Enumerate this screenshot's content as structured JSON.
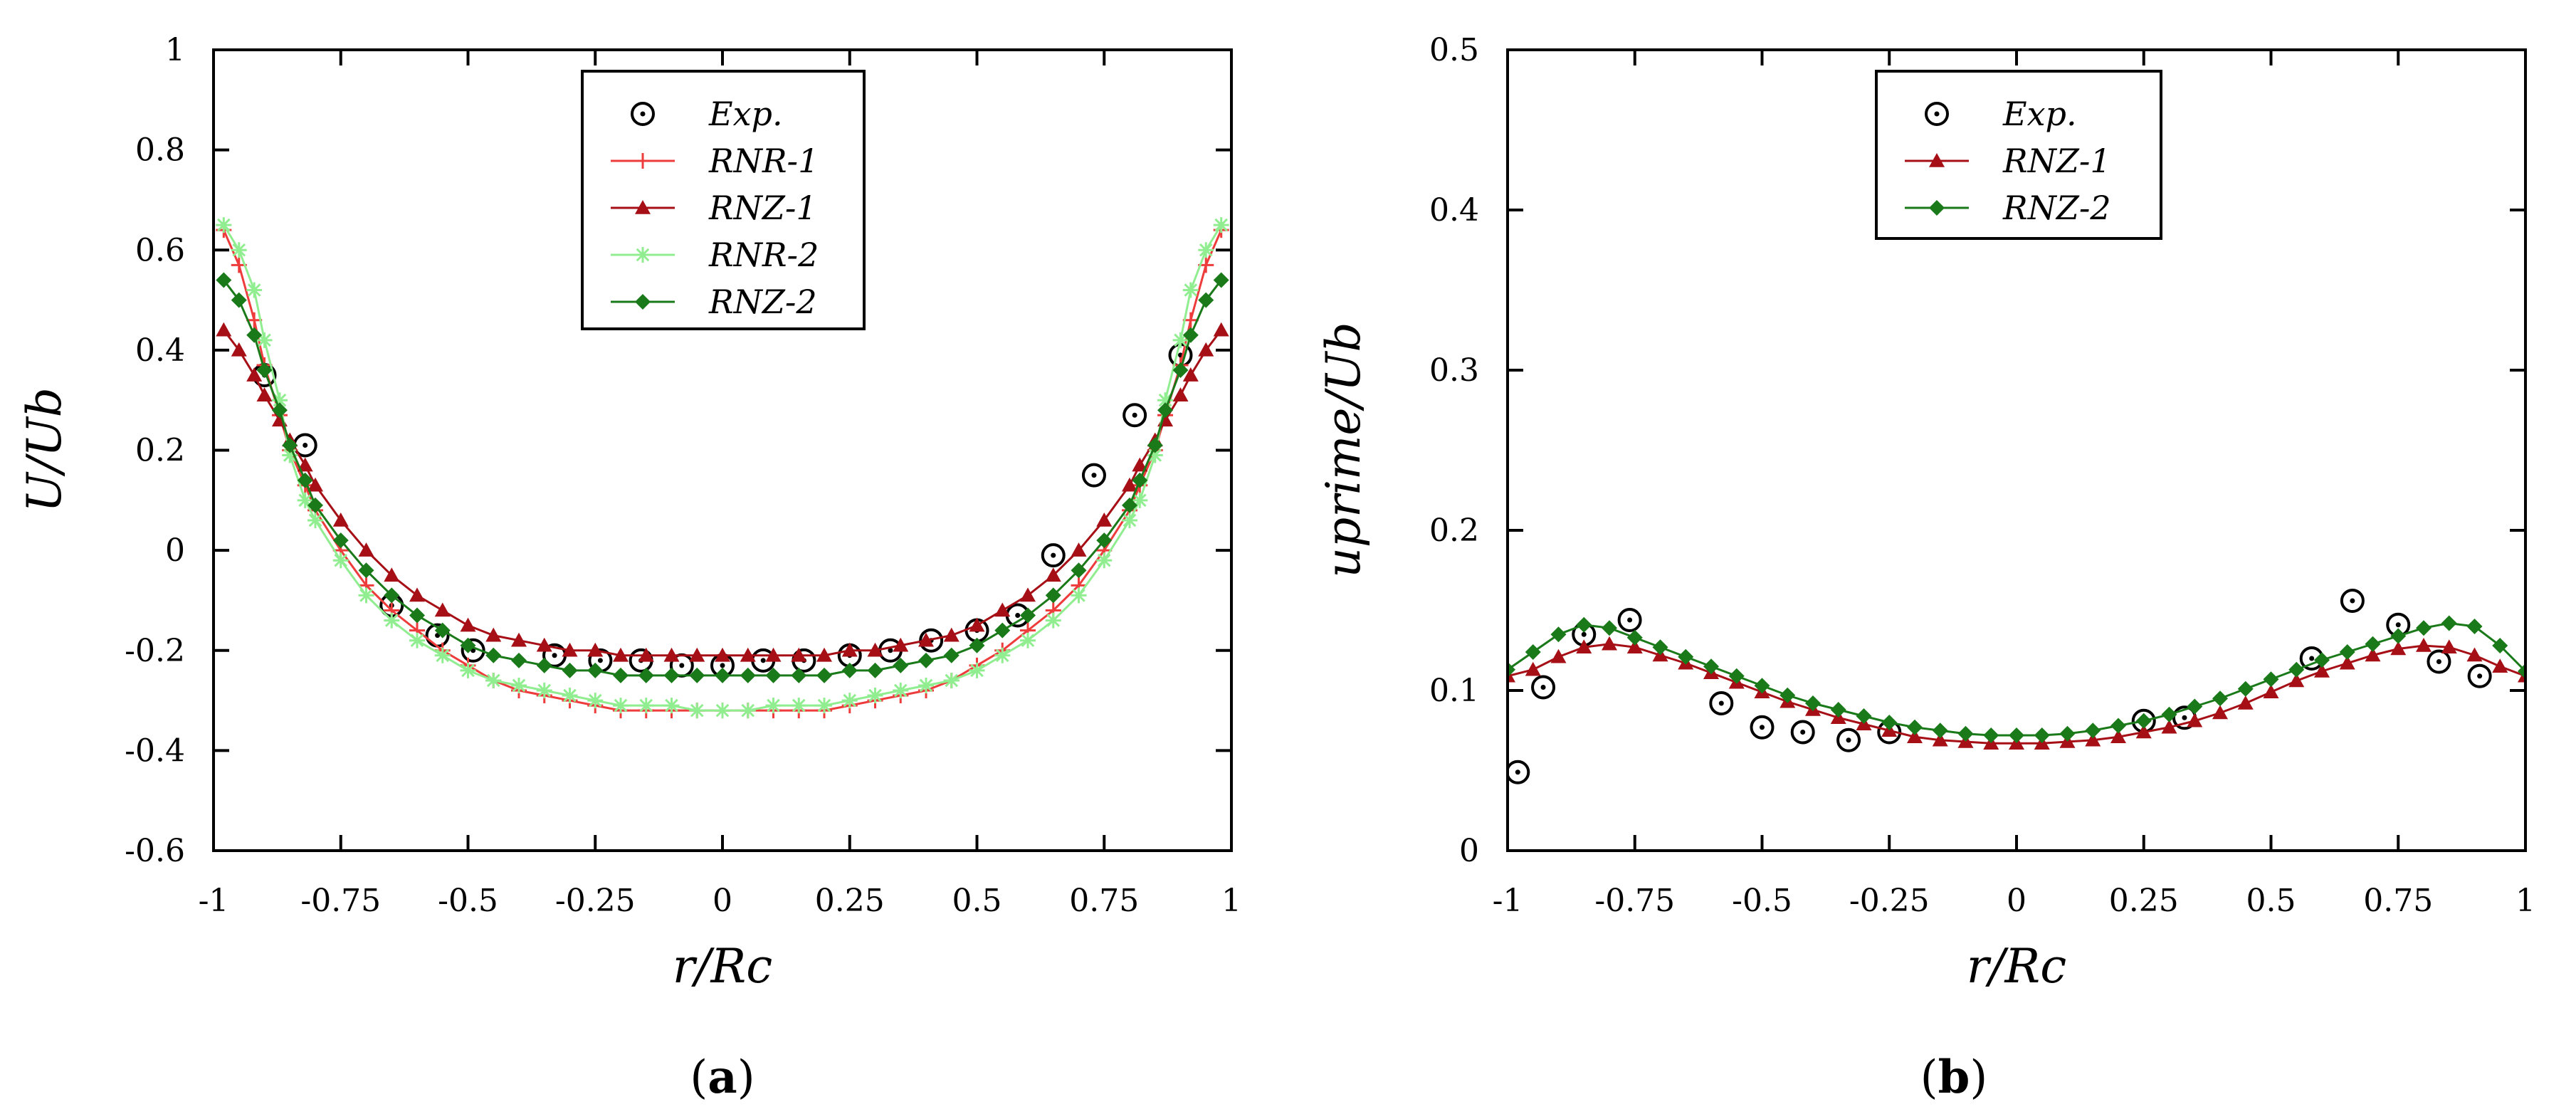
{
  "colors": {
    "exp": "#000000",
    "rnr1": "#ee3b3b",
    "rnz1": "#a50f15",
    "rnr2": "#90ee90",
    "rnz2": "#1a7a1a"
  },
  "chart_data": [
    {
      "type": "line",
      "panel_label": "a",
      "xlabel": "r/Rc",
      "ylabel": "U/Ub",
      "xlim": [
        -1,
        1
      ],
      "ylim": [
        -0.6,
        1
      ],
      "xticks": [
        "-1",
        "-0.75",
        "-0.5",
        "-0.25",
        "0",
        "0.25",
        "0.5",
        "0.75",
        "1"
      ],
      "yticks": [
        "1",
        "0.8",
        "0.6",
        "0.4",
        "0.2",
        "0",
        "-0.2",
        "-0.4",
        "-0.6"
      ],
      "legend": [
        "Exp.",
        "RNR-1",
        "RNZ-1",
        "RNR-2",
        "RNZ-2"
      ],
      "legend_position": "top-center",
      "series": [
        {
          "name": "Exp.",
          "marker": "circle-dot",
          "x": [
            -0.9,
            -0.82,
            -0.65,
            -0.56,
            -0.49,
            -0.33,
            -0.24,
            -0.16,
            -0.08,
            0.0,
            0.08,
            0.16,
            0.25,
            0.33,
            0.41,
            0.5,
            0.58,
            0.65,
            0.73,
            0.81,
            0.9
          ],
          "y": [
            0.35,
            0.21,
            -0.11,
            -0.17,
            -0.2,
            -0.21,
            -0.22,
            -0.22,
            -0.23,
            -0.23,
            -0.22,
            -0.22,
            -0.21,
            -0.2,
            -0.18,
            -0.16,
            -0.13,
            -0.01,
            0.15,
            0.27,
            0.39
          ]
        },
        {
          "name": "RNR-1",
          "marker": "plus",
          "x": [
            -0.98,
            -0.95,
            -0.92,
            -0.9,
            -0.87,
            -0.85,
            -0.82,
            -0.8,
            -0.75,
            -0.7,
            -0.65,
            -0.6,
            -0.55,
            -0.5,
            -0.45,
            -0.4,
            -0.35,
            -0.3,
            -0.25,
            -0.2,
            -0.15,
            -0.1,
            -0.05,
            0.0,
            0.05,
            0.1,
            0.15,
            0.2,
            0.25,
            0.3,
            0.35,
            0.4,
            0.45,
            0.5,
            0.55,
            0.6,
            0.65,
            0.7,
            0.75,
            0.8,
            0.82,
            0.85,
            0.87,
            0.9,
            0.92,
            0.95,
            0.98
          ],
          "y": [
            0.64,
            0.57,
            0.46,
            0.37,
            0.27,
            0.2,
            0.13,
            0.08,
            0.0,
            -0.07,
            -0.12,
            -0.16,
            -0.2,
            -0.23,
            -0.26,
            -0.28,
            -0.29,
            -0.3,
            -0.31,
            -0.32,
            -0.32,
            -0.32,
            -0.32,
            -0.32,
            -0.32,
            -0.32,
            -0.32,
            -0.32,
            -0.31,
            -0.3,
            -0.29,
            -0.28,
            -0.26,
            -0.23,
            -0.2,
            -0.16,
            -0.12,
            -0.07,
            0.0,
            0.08,
            0.13,
            0.2,
            0.27,
            0.37,
            0.46,
            0.57,
            0.64
          ]
        },
        {
          "name": "RNZ-1",
          "marker": "triangle",
          "x": [
            -0.98,
            -0.95,
            -0.92,
            -0.9,
            -0.87,
            -0.85,
            -0.82,
            -0.8,
            -0.75,
            -0.7,
            -0.65,
            -0.6,
            -0.55,
            -0.5,
            -0.45,
            -0.4,
            -0.35,
            -0.3,
            -0.25,
            -0.2,
            -0.15,
            -0.1,
            -0.05,
            0.0,
            0.05,
            0.1,
            0.15,
            0.2,
            0.25,
            0.3,
            0.35,
            0.4,
            0.45,
            0.5,
            0.55,
            0.6,
            0.65,
            0.7,
            0.75,
            0.8,
            0.82,
            0.85,
            0.87,
            0.9,
            0.92,
            0.95,
            0.98
          ],
          "y": [
            0.44,
            0.4,
            0.35,
            0.31,
            0.26,
            0.22,
            0.17,
            0.13,
            0.06,
            0.0,
            -0.05,
            -0.09,
            -0.12,
            -0.15,
            -0.17,
            -0.18,
            -0.19,
            -0.2,
            -0.2,
            -0.21,
            -0.21,
            -0.21,
            -0.21,
            -0.21,
            -0.21,
            -0.21,
            -0.21,
            -0.21,
            -0.2,
            -0.2,
            -0.19,
            -0.18,
            -0.17,
            -0.15,
            -0.12,
            -0.09,
            -0.05,
            0.0,
            0.06,
            0.13,
            0.17,
            0.22,
            0.26,
            0.31,
            0.35,
            0.4,
            0.44
          ]
        },
        {
          "name": "RNR-2",
          "marker": "asterisk",
          "x": [
            -0.98,
            -0.95,
            -0.92,
            -0.9,
            -0.87,
            -0.85,
            -0.82,
            -0.8,
            -0.75,
            -0.7,
            -0.65,
            -0.6,
            -0.55,
            -0.5,
            -0.45,
            -0.4,
            -0.35,
            -0.3,
            -0.25,
            -0.2,
            -0.15,
            -0.1,
            -0.05,
            0.0,
            0.05,
            0.1,
            0.15,
            0.2,
            0.25,
            0.3,
            0.35,
            0.4,
            0.45,
            0.5,
            0.55,
            0.6,
            0.65,
            0.7,
            0.75,
            0.8,
            0.82,
            0.85,
            0.87,
            0.9,
            0.92,
            0.95,
            0.98
          ],
          "y": [
            0.65,
            0.6,
            0.52,
            0.42,
            0.3,
            0.19,
            0.1,
            0.06,
            -0.02,
            -0.09,
            -0.14,
            -0.18,
            -0.21,
            -0.24,
            -0.26,
            -0.27,
            -0.28,
            -0.29,
            -0.3,
            -0.31,
            -0.31,
            -0.31,
            -0.32,
            -0.32,
            -0.32,
            -0.31,
            -0.31,
            -0.31,
            -0.3,
            -0.29,
            -0.28,
            -0.27,
            -0.26,
            -0.24,
            -0.21,
            -0.18,
            -0.14,
            -0.09,
            -0.02,
            0.06,
            0.1,
            0.19,
            0.3,
            0.42,
            0.52,
            0.6,
            0.65
          ]
        },
        {
          "name": "RNZ-2",
          "marker": "diamond",
          "x": [
            -0.98,
            -0.95,
            -0.92,
            -0.9,
            -0.87,
            -0.85,
            -0.82,
            -0.8,
            -0.75,
            -0.7,
            -0.65,
            -0.6,
            -0.55,
            -0.5,
            -0.45,
            -0.4,
            -0.35,
            -0.3,
            -0.25,
            -0.2,
            -0.15,
            -0.1,
            -0.05,
            0.0,
            0.05,
            0.1,
            0.15,
            0.2,
            0.25,
            0.3,
            0.35,
            0.4,
            0.45,
            0.5,
            0.55,
            0.6,
            0.65,
            0.7,
            0.75,
            0.8,
            0.82,
            0.85,
            0.87,
            0.9,
            0.92,
            0.95,
            0.98
          ],
          "y": [
            0.54,
            0.5,
            0.43,
            0.36,
            0.28,
            0.21,
            0.14,
            0.09,
            0.02,
            -0.04,
            -0.09,
            -0.13,
            -0.16,
            -0.19,
            -0.21,
            -0.22,
            -0.23,
            -0.24,
            -0.24,
            -0.25,
            -0.25,
            -0.25,
            -0.25,
            -0.25,
            -0.25,
            -0.25,
            -0.25,
            -0.25,
            -0.24,
            -0.24,
            -0.23,
            -0.22,
            -0.21,
            -0.19,
            -0.16,
            -0.13,
            -0.09,
            -0.04,
            0.02,
            0.09,
            0.14,
            0.21,
            0.28,
            0.36,
            0.43,
            0.5,
            0.54
          ]
        }
      ]
    },
    {
      "type": "line",
      "panel_label": "b",
      "xlabel": "r/Rc",
      "ylabel": "uprime/Ub",
      "xlim": [
        -1,
        1
      ],
      "ylim": [
        0,
        0.5
      ],
      "xticks": [
        "-1",
        "-0.75",
        "-0.5",
        "-0.25",
        "0",
        "0.25",
        "0.5",
        "0.75",
        "1"
      ],
      "yticks": [
        "0.5",
        "0.4",
        "0.3",
        "0.2",
        "0.1",
        "0"
      ],
      "legend": [
        "Exp.",
        "RNZ-1",
        "RNZ-2"
      ],
      "legend_position": "top-center",
      "series": [
        {
          "name": "Exp.",
          "marker": "circle-dot",
          "x": [
            -0.98,
            -0.93,
            -0.85,
            -0.76,
            -0.58,
            -0.5,
            -0.42,
            -0.33,
            -0.25,
            0.25,
            0.33,
            0.58,
            0.66,
            0.75,
            0.83,
            0.91
          ],
          "y": [
            0.049,
            0.102,
            0.135,
            0.144,
            0.092,
            0.077,
            0.074,
            0.069,
            0.074,
            0.081,
            0.083,
            0.12,
            0.156,
            0.141,
            0.118,
            0.109
          ]
        },
        {
          "name": "RNZ-1",
          "marker": "triangle",
          "x": [
            -1.0,
            -0.95,
            -0.9,
            -0.85,
            -0.8,
            -0.75,
            -0.7,
            -0.65,
            -0.6,
            -0.55,
            -0.5,
            -0.45,
            -0.4,
            -0.35,
            -0.3,
            -0.25,
            -0.2,
            -0.15,
            -0.1,
            -0.05,
            0.0,
            0.05,
            0.1,
            0.15,
            0.2,
            0.25,
            0.3,
            0.35,
            0.4,
            0.45,
            0.5,
            0.55,
            0.6,
            0.65,
            0.7,
            0.75,
            0.8,
            0.85,
            0.9,
            0.95,
            1.0
          ],
          "y": [
            0.109,
            0.113,
            0.121,
            0.127,
            0.129,
            0.127,
            0.122,
            0.117,
            0.111,
            0.105,
            0.099,
            0.093,
            0.088,
            0.083,
            0.079,
            0.075,
            0.071,
            0.069,
            0.068,
            0.067,
            0.067,
            0.067,
            0.068,
            0.069,
            0.071,
            0.074,
            0.077,
            0.081,
            0.086,
            0.092,
            0.099,
            0.106,
            0.112,
            0.117,
            0.122,
            0.126,
            0.128,
            0.127,
            0.122,
            0.115,
            0.109
          ]
        },
        {
          "name": "RNZ-2",
          "marker": "diamond",
          "x": [
            -1.0,
            -0.95,
            -0.9,
            -0.85,
            -0.8,
            -0.75,
            -0.7,
            -0.65,
            -0.6,
            -0.55,
            -0.5,
            -0.45,
            -0.4,
            -0.35,
            -0.3,
            -0.25,
            -0.2,
            -0.15,
            -0.1,
            -0.05,
            0.0,
            0.05,
            0.1,
            0.15,
            0.2,
            0.25,
            0.3,
            0.35,
            0.4,
            0.45,
            0.5,
            0.55,
            0.6,
            0.65,
            0.7,
            0.75,
            0.8,
            0.85,
            0.9,
            0.95,
            1.0
          ],
          "y": [
            0.113,
            0.124,
            0.135,
            0.141,
            0.139,
            0.133,
            0.127,
            0.121,
            0.115,
            0.109,
            0.103,
            0.097,
            0.092,
            0.088,
            0.084,
            0.08,
            0.077,
            0.075,
            0.073,
            0.072,
            0.072,
            0.072,
            0.073,
            0.075,
            0.078,
            0.081,
            0.085,
            0.09,
            0.095,
            0.101,
            0.107,
            0.113,
            0.119,
            0.124,
            0.129,
            0.134,
            0.139,
            0.142,
            0.14,
            0.128,
            0.112
          ]
        }
      ]
    }
  ]
}
